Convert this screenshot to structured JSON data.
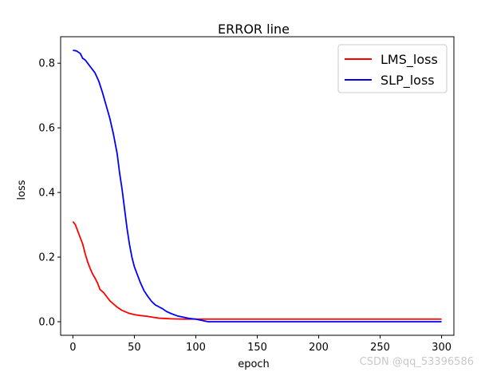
{
  "chart_data": {
    "type": "line",
    "title": "ERROR line",
    "xlabel": "epoch",
    "ylabel": "loss",
    "xlim": [
      -10,
      310
    ],
    "ylim": [
      -0.042,
      0.882
    ],
    "x_ticks": [
      0,
      50,
      100,
      150,
      200,
      250,
      300
    ],
    "y_ticks": [
      0.0,
      0.2,
      0.4,
      0.6,
      0.8
    ],
    "y_tick_labels": [
      "0.0",
      "0.2",
      "0.4",
      "0.6",
      "0.8"
    ],
    "grid": false,
    "legend_position": "top-right",
    "series": [
      {
        "name": "LMS_loss",
        "color": "#ff0000",
        "x": [
          0,
          2,
          4,
          6,
          8,
          10,
          12,
          14,
          16,
          18,
          20,
          22,
          25,
          28,
          30,
          33,
          36,
          40,
          45,
          50,
          55,
          60,
          65,
          70,
          75,
          80,
          90,
          100,
          120,
          150,
          200,
          250,
          300
        ],
        "y": [
          0.31,
          0.3,
          0.28,
          0.26,
          0.24,
          0.21,
          0.185,
          0.165,
          0.148,
          0.135,
          0.12,
          0.1,
          0.09,
          0.075,
          0.065,
          0.055,
          0.045,
          0.035,
          0.027,
          0.022,
          0.019,
          0.017,
          0.014,
          0.011,
          0.01,
          0.009,
          0.008,
          0.008,
          0.008,
          0.008,
          0.008,
          0.008,
          0.008
        ]
      },
      {
        "name": "SLP_loss",
        "color": "#0000ff",
        "x": [
          0,
          3,
          6,
          8,
          10,
          12,
          15,
          18,
          21,
          24,
          27,
          30,
          33,
          36,
          38,
          40,
          42,
          44,
          46,
          48,
          50,
          52,
          55,
          58,
          61,
          64,
          67,
          70,
          73,
          76,
          80,
          85,
          90,
          95,
          100,
          105,
          110,
          120,
          150,
          200,
          250,
          300
        ],
        "y": [
          0.84,
          0.838,
          0.83,
          0.815,
          0.81,
          0.8,
          0.785,
          0.77,
          0.745,
          0.71,
          0.67,
          0.63,
          0.58,
          0.52,
          0.46,
          0.41,
          0.35,
          0.29,
          0.24,
          0.2,
          0.17,
          0.15,
          0.12,
          0.095,
          0.078,
          0.063,
          0.052,
          0.046,
          0.04,
          0.032,
          0.025,
          0.018,
          0.014,
          0.01,
          0.008,
          0.004,
          0.0,
          0.0,
          0.0,
          0.0,
          0.0,
          0.0
        ]
      }
    ]
  },
  "watermark": "CSDN @qq_53396586"
}
